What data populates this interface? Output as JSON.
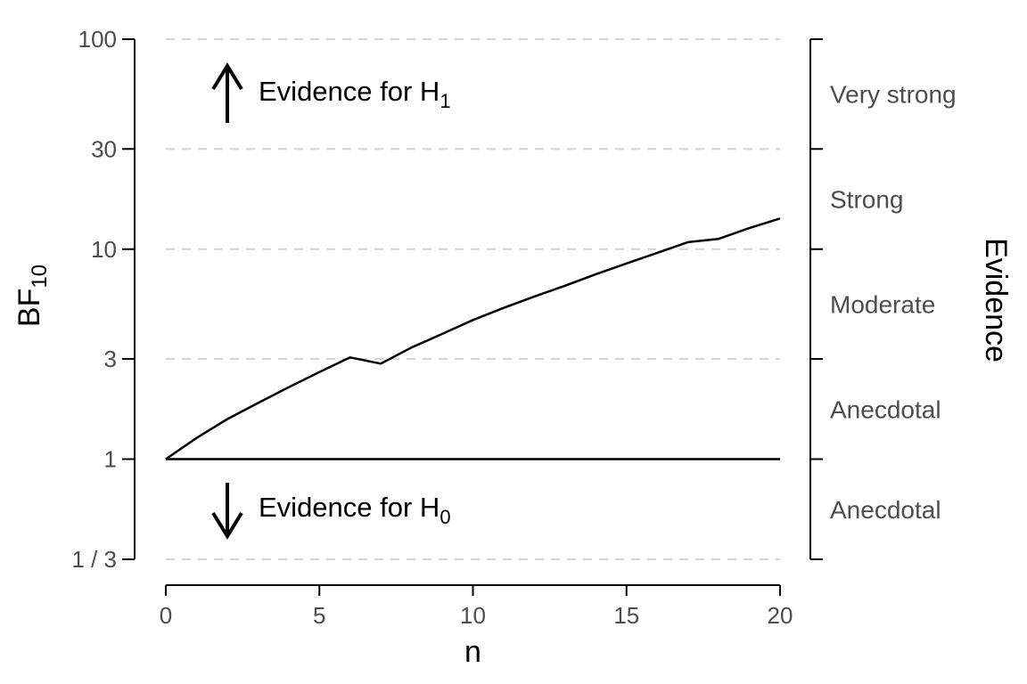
{
  "chart_data": {
    "type": "line",
    "x_label": "n",
    "y_label": {
      "main": "BF",
      "sub": "10"
    },
    "right_axis_label": "Evidence",
    "x_ticks": [
      {
        "value": 0,
        "label": "0"
      },
      {
        "value": 5,
        "label": "5"
      },
      {
        "value": 10,
        "label": "10"
      },
      {
        "value": 15,
        "label": "15"
      },
      {
        "value": 20,
        "label": "20"
      }
    ],
    "y_scale": "log",
    "y_lim": [
      0.3333,
      100
    ],
    "x_lim": [
      0,
      20
    ],
    "y_ticks": [
      {
        "value": 0.3333,
        "label": "1 / 3"
      },
      {
        "value": 1,
        "label": "1"
      },
      {
        "value": 3,
        "label": "3"
      },
      {
        "value": 10,
        "label": "10"
      },
      {
        "value": 30,
        "label": "30"
      },
      {
        "value": 100,
        "label": "100"
      }
    ],
    "gridlines_dashed_at": [
      0.3333,
      3,
      10,
      30,
      100
    ],
    "reference_line_at": 1,
    "evidence_categories": [
      {
        "label": "Very strong",
        "range": [
          30,
          100
        ]
      },
      {
        "label": "Strong",
        "range": [
          10,
          30
        ]
      },
      {
        "label": "Moderate",
        "range": [
          3,
          10
        ]
      },
      {
        "label": "Anecdotal",
        "range": [
          1,
          3
        ]
      },
      {
        "label": "Anecdotal",
        "range": [
          0.3333,
          1
        ]
      }
    ],
    "annotations": [
      {
        "text": "Evidence for H",
        "sub": "1",
        "arrow": "up"
      },
      {
        "text": "Evidence for H",
        "sub": "0",
        "arrow": "down"
      }
    ],
    "series": [
      {
        "x": [
          0,
          1,
          2,
          3,
          4,
          5,
          6,
          7,
          8,
          9,
          10,
          11,
          12,
          13,
          14,
          15,
          16,
          17,
          18,
          19,
          20
        ],
        "y": [
          1.0,
          1.26,
          1.55,
          1.85,
          2.2,
          2.6,
          3.05,
          2.85,
          3.4,
          3.95,
          4.6,
          5.25,
          5.95,
          6.7,
          7.6,
          8.55,
          9.6,
          10.8,
          11.2,
          12.6,
          14.0
        ]
      }
    ],
    "colors": {
      "line": "#000000",
      "grid": "#d3d3d3",
      "tick_text": "#4d4d4d"
    }
  }
}
